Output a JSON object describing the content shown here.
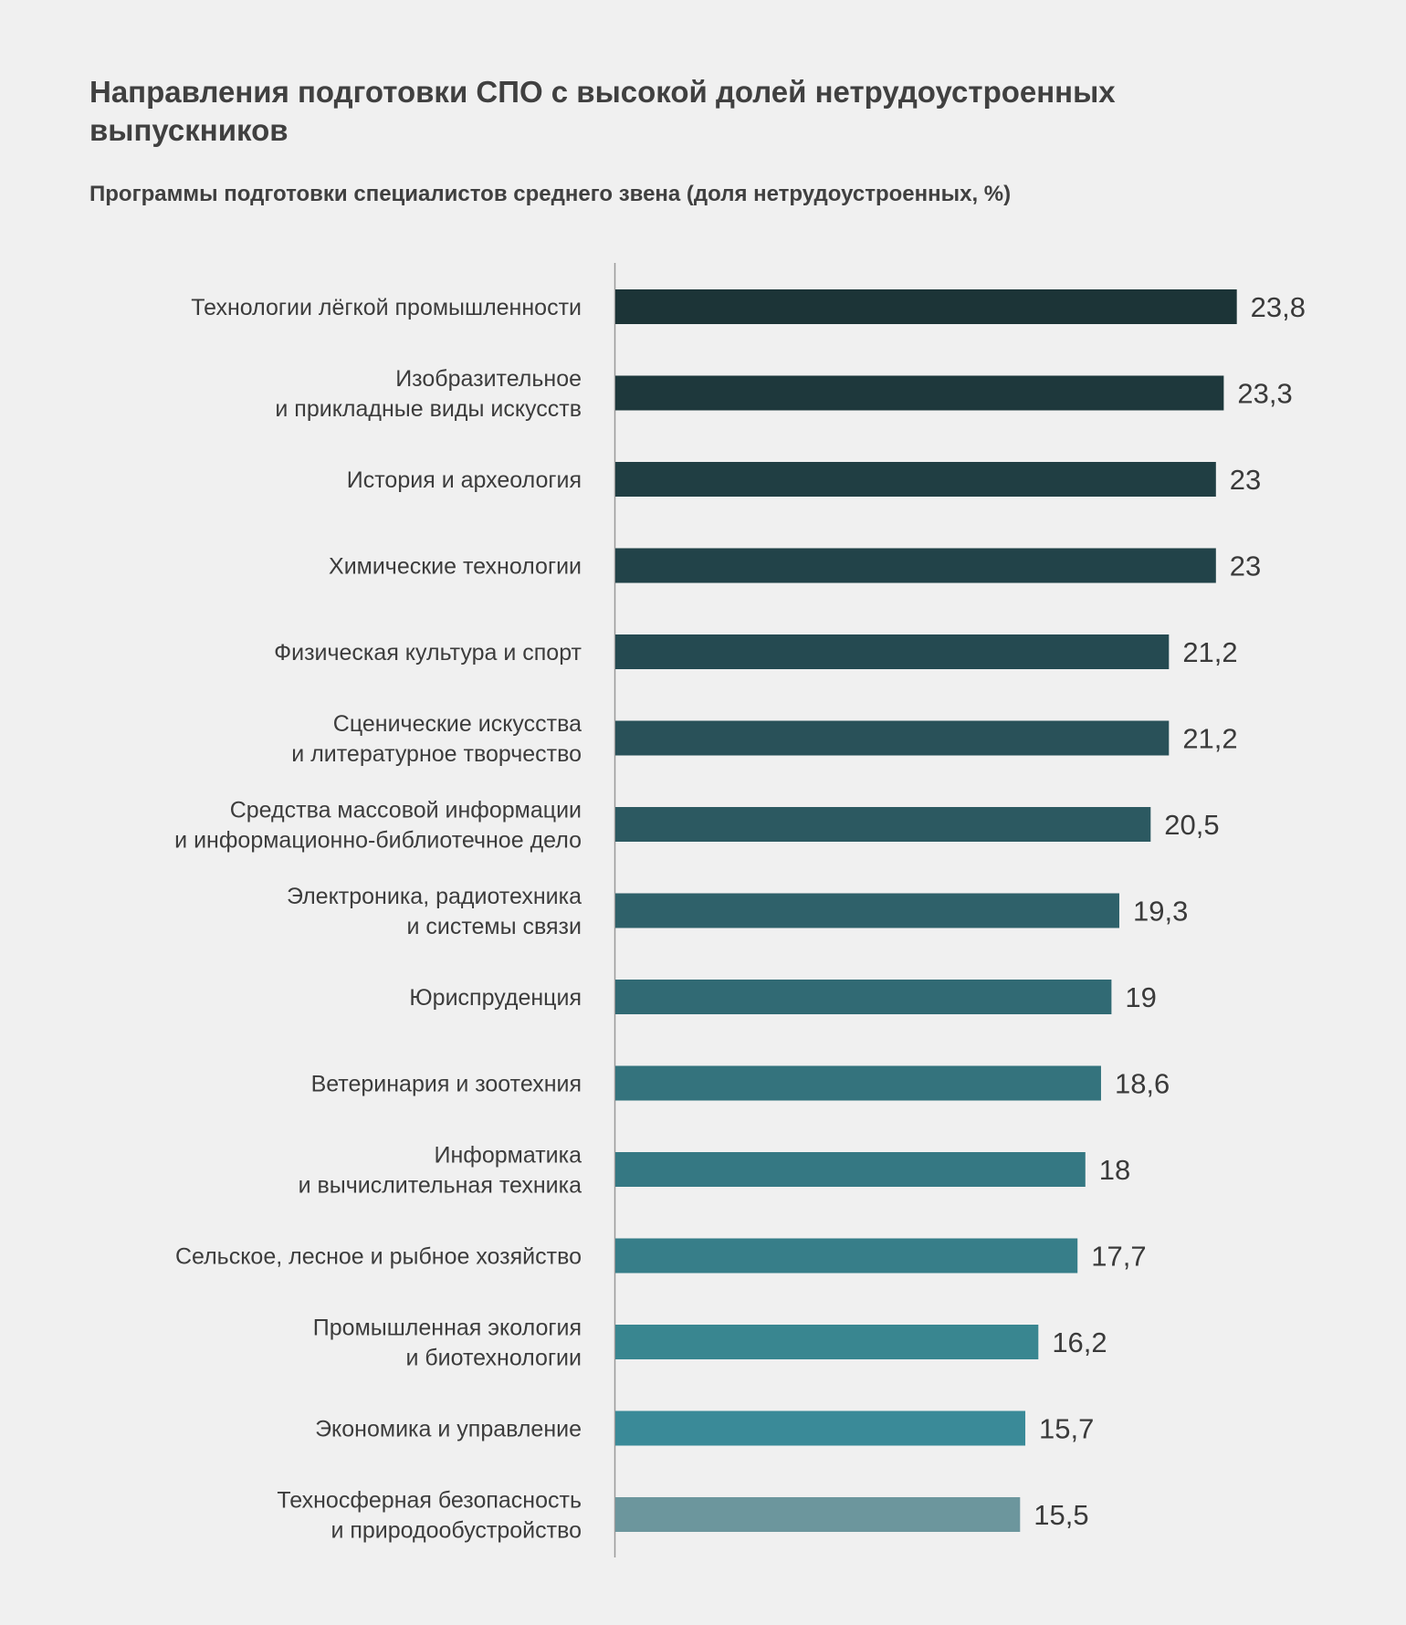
{
  "title": "Направления подготовки СПО с высокой долей нетрудоустроенных выпускников",
  "subtitle": "Программы подготовки специалистов среднего звена (доля нетрудоустроенных, %)",
  "chart_data": {
    "type": "bar",
    "orientation": "horizontal",
    "categories": [
      [
        "Технологии лёгкой промышленности"
      ],
      [
        "Изобразительное",
        "и прикладные виды искусств"
      ],
      [
        "История и археология"
      ],
      [
        "Химические технологии"
      ],
      [
        "Физическая культура и спорт"
      ],
      [
        "Сценические искусства",
        "и литературное творчество"
      ],
      [
        "Средства массовой информации",
        "и информационно-библиотечное дело"
      ],
      [
        "Электроника, радиотехника",
        "и системы связи"
      ],
      [
        "Юриспруденция"
      ],
      [
        "Ветеринария и зоотехния"
      ],
      [
        "Информатика",
        "и вычислительная техника"
      ],
      [
        "Сельское, лесное и рыбное хозяйство"
      ],
      [
        "Промышленная экология",
        "и биотехнологии"
      ],
      [
        "Экономика и управление"
      ],
      [
        "Техносферная безопасность",
        "и природообустройство"
      ]
    ],
    "values": [
      23.8,
      23.3,
      23,
      23,
      21.2,
      21.2,
      20.5,
      19.3,
      19,
      18.6,
      18,
      17.7,
      16.2,
      15.7,
      15.5
    ],
    "value_labels": [
      "23,8",
      "23,3",
      "23",
      "23",
      "21,2",
      "21,2",
      "20,5",
      "19,3",
      "19",
      "18,6",
      "18",
      "17,7",
      "16,2",
      "15,7",
      "15,5"
    ],
    "colors": [
      "#1c3437",
      "#1e383c",
      "#203e43",
      "#224349",
      "#254a51",
      "#295159",
      "#2c5961",
      "#2f616a",
      "#316a74",
      "#34737d",
      "#357883",
      "#377e89",
      "#398690",
      "#3a8a98",
      "#6c969d"
    ],
    "xlim": [
      0,
      24.5
    ],
    "grid": false,
    "legend": false
  }
}
